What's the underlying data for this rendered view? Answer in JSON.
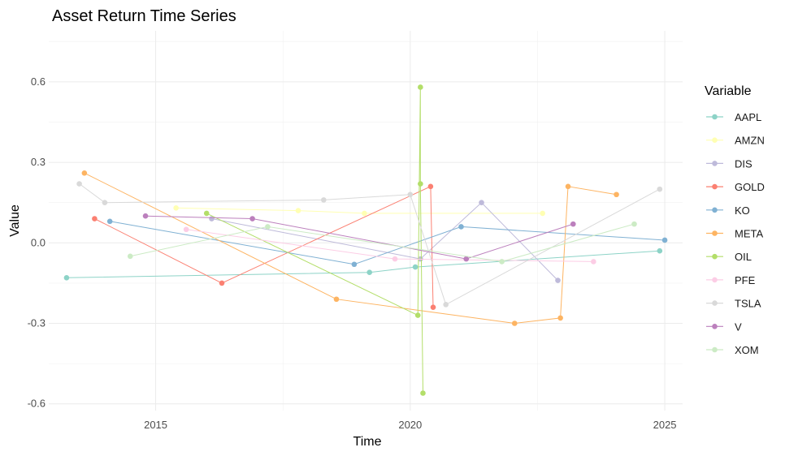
{
  "chart_data": {
    "type": "line",
    "title": "Asset Return Time Series",
    "xlabel": "Time",
    "ylabel": "Value",
    "xlim": [
      2012.9,
      2025.35
    ],
    "ylim": [
      -0.625,
      0.79
    ],
    "x_ticks": [
      {
        "value": 2015,
        "label": "2015"
      },
      {
        "value": 2020,
        "label": "2020"
      },
      {
        "value": 2025,
        "label": "2025"
      }
    ],
    "y_ticks": [
      {
        "value": -0.6,
        "label": "-0.6"
      },
      {
        "value": -0.3,
        "label": "-0.3"
      },
      {
        "value": 0.0,
        "label": "0.0"
      },
      {
        "value": 0.3,
        "label": "0.3"
      },
      {
        "value": 0.6,
        "label": "0.6"
      }
    ],
    "grid": true,
    "legend": {
      "title": "Variable",
      "position": "right"
    },
    "series": [
      {
        "name": "AAPL",
        "color": "#8dd3c7",
        "x": [
          2013.25,
          2019.2,
          2020.1,
          2024.9
        ],
        "y": [
          -0.13,
          -0.11,
          -0.09,
          -0.03
        ]
      },
      {
        "name": "AMZN",
        "color": "#ffffb3",
        "x": [
          2015.4,
          2017.8,
          2019.1,
          2022.6
        ],
        "y": [
          0.13,
          0.12,
          0.11,
          0.11
        ]
      },
      {
        "name": "DIS",
        "color": "#bebada",
        "x": [
          2016.1,
          2020.2,
          2021.4,
          2022.9
        ],
        "y": [
          0.09,
          -0.06,
          0.15,
          -0.14
        ]
      },
      {
        "name": "GOLD",
        "color": "#fb8072",
        "x": [
          2013.8,
          2016.3,
          2020.4,
          2020.45
        ],
        "y": [
          0.09,
          -0.15,
          0.21,
          -0.24
        ]
      },
      {
        "name": "KO",
        "color": "#80b1d3",
        "x": [
          2014.1,
          2018.9,
          2021.0,
          2025.0
        ],
        "y": [
          0.08,
          -0.08,
          0.06,
          0.01
        ]
      },
      {
        "name": "META",
        "color": "#fdb462",
        "x": [
          2013.6,
          2018.55,
          2022.05,
          2022.95,
          2023.1,
          2024.05
        ],
        "y": [
          0.26,
          -0.21,
          -0.3,
          -0.28,
          0.21,
          0.18
        ]
      },
      {
        "name": "OIL",
        "color": "#b3de69",
        "x": [
          2020.2,
          2020.25,
          2020.15,
          2020.2,
          2016.0
        ],
        "y": [
          0.58,
          -0.56,
          -0.27,
          0.22,
          0.11
        ]
      },
      {
        "name": "PFE",
        "color": "#fccde5",
        "x": [
          2015.6,
          2019.7,
          2023.6
        ],
        "y": [
          0.05,
          -0.06,
          -0.07
        ]
      },
      {
        "name": "TSLA",
        "color": "#d9d9d9",
        "x": [
          2013.5,
          2014.0,
          2018.3,
          2020.0,
          2020.7,
          2024.9
        ],
        "y": [
          0.22,
          0.15,
          0.16,
          0.18,
          -0.23,
          0.2
        ]
      },
      {
        "name": "V",
        "color": "#bc80bd",
        "x": [
          2014.8,
          2016.9,
          2021.1,
          2023.2
        ],
        "y": [
          0.1,
          0.09,
          -0.06,
          0.07
        ]
      },
      {
        "name": "XOM",
        "color": "#ccebc5",
        "x": [
          2014.5,
          2017.2,
          2021.8,
          2024.4
        ],
        "y": [
          -0.05,
          0.06,
          -0.07,
          0.07
        ]
      }
    ]
  }
}
